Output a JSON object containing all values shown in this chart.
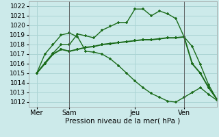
{
  "bg_color": "#cceaea",
  "grid_color": "#aad4d4",
  "line_color": "#1a6b1a",
  "ylim": [
    1011.5,
    1022.5
  ],
  "yticks": [
    1012,
    1013,
    1014,
    1015,
    1016,
    1017,
    1018,
    1019,
    1020,
    1021,
    1022
  ],
  "xlabel": "Pression niveau de la mer( hPa )",
  "xtick_labels": [
    "Mer",
    "Sam",
    "Jeu",
    "Ven"
  ],
  "xtick_positions": [
    1,
    5,
    13,
    19
  ],
  "vline_positions": [
    5,
    19
  ],
  "xlim": [
    0,
    23
  ],
  "line1_x": [
    1,
    2,
    3,
    4,
    5,
    6,
    7,
    8,
    9,
    10,
    11,
    12,
    13,
    14,
    15,
    16,
    17,
    18,
    19,
    20,
    21,
    22,
    23
  ],
  "line1_y": [
    1015.0,
    1016.1,
    1017.1,
    1018.0,
    1018.0,
    1019.1,
    1018.9,
    1018.7,
    1019.5,
    1019.9,
    1020.3,
    1020.3,
    1021.7,
    1021.7,
    1021.0,
    1021.5,
    1021.2,
    1020.7,
    1018.8,
    1017.8,
    1015.9,
    1013.8,
    1012.3
  ],
  "line2_x": [
    1,
    2,
    3,
    4,
    5,
    6,
    7,
    8,
    9,
    10,
    11,
    12,
    13,
    14,
    15,
    16,
    17,
    18,
    19,
    20,
    21,
    22,
    23
  ],
  "line2_y": [
    1015.0,
    1017.0,
    1018.0,
    1019.0,
    1019.2,
    1018.8,
    1017.3,
    1017.2,
    1017.0,
    1016.5,
    1015.8,
    1015.0,
    1014.2,
    1013.5,
    1012.9,
    1012.5,
    1012.1,
    1012.0,
    1012.5,
    1013.0,
    1013.5,
    1012.8,
    1012.2
  ],
  "line3_x": [
    1,
    2,
    3,
    4,
    5,
    6,
    7,
    8,
    9,
    10,
    11,
    12,
    13,
    14,
    15,
    16,
    17,
    18,
    19,
    20,
    21,
    22,
    23
  ],
  "line3_y": [
    1015.0,
    1016.0,
    1017.0,
    1017.5,
    1017.3,
    1017.5,
    1017.7,
    1017.8,
    1018.0,
    1018.1,
    1018.2,
    1018.3,
    1018.4,
    1018.5,
    1018.5,
    1018.6,
    1018.7,
    1018.7,
    1018.8,
    1016.0,
    1015.0,
    1013.5,
    1012.3
  ]
}
